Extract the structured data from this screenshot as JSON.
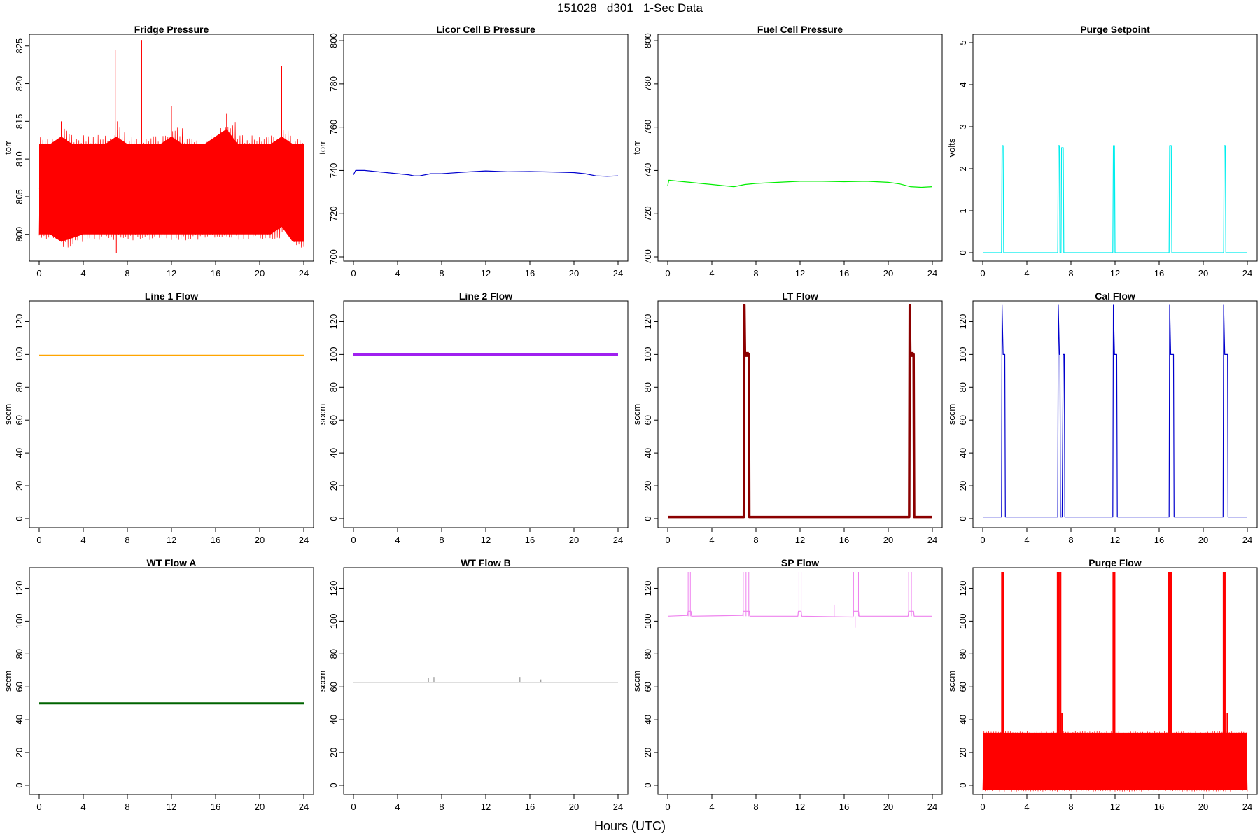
{
  "figure": {
    "title": "151028   d301   1-Sec Data",
    "xlabel": "Hours (UTC)"
  },
  "chart_data": [
    {
      "type": "line",
      "title": "Fridge Pressure",
      "ylabel": "torr",
      "color": "#ff0000",
      "xlim": [
        0,
        24
      ],
      "ylim": [
        797,
        826
      ],
      "xticks": [
        0,
        4,
        8,
        12,
        16,
        20,
        24
      ],
      "yticks": [
        800,
        805,
        810,
        815,
        820,
        825
      ],
      "series": [
        {
          "x": [
            0,
            1,
            2,
            3,
            4,
            5,
            6,
            7,
            8,
            9,
            10,
            11,
            12,
            13,
            14,
            15,
            16,
            17,
            18,
            19,
            20,
            21,
            22,
            23,
            24
          ],
          "y": [
            806,
            806.5,
            807,
            806,
            806,
            806.5,
            806,
            808,
            807,
            807.5,
            807,
            806.5,
            807,
            806.5,
            806,
            806,
            806.5,
            808,
            807,
            806,
            806,
            806,
            807,
            806,
            806
          ]
        }
      ],
      "noise_band": {
        "low": [
          800,
          800,
          799,
          799.5,
          800,
          800,
          800,
          800,
          800,
          800,
          800,
          800,
          800,
          800,
          800,
          800,
          800,
          800,
          800,
          800,
          800,
          800,
          801,
          799,
          799
        ],
        "high": [
          812,
          812,
          813,
          812,
          812,
          812,
          812,
          813,
          812,
          812,
          812,
          812,
          813,
          812,
          812,
          812,
          813,
          814,
          812,
          812,
          812,
          812,
          813,
          812,
          812
        ]
      },
      "spikes": [
        {
          "x": 2,
          "y": 815
        },
        {
          "x": 6.9,
          "y": 824.5
        },
        {
          "x": 7.1,
          "y": 815
        },
        {
          "x": 9.3,
          "y": 825.8
        },
        {
          "x": 12,
          "y": 817
        },
        {
          "x": 17,
          "y": 816
        },
        {
          "x": 22,
          "y": 822.3
        },
        {
          "x": 7,
          "y": 797.5
        }
      ]
    },
    {
      "type": "line",
      "title": "Licor Cell B Pressure",
      "ylabel": "torr",
      "color": "#0000cd",
      "xlim": [
        0,
        24
      ],
      "ylim": [
        700,
        801
      ],
      "xticks": [
        0,
        4,
        8,
        12,
        16,
        20,
        24
      ],
      "yticks": [
        700,
        720,
        740,
        760,
        780,
        800
      ],
      "series": [
        {
          "x": [
            0,
            0.2,
            1,
            2,
            3,
            4,
            5,
            5.5,
            6,
            7,
            8,
            10,
            12,
            14,
            16,
            18,
            20,
            21,
            22,
            23,
            24
          ],
          "y": [
            738,
            740,
            740,
            739.5,
            739,
            738.5,
            738,
            737.5,
            737.5,
            738.5,
            738.5,
            739.2,
            739.8,
            739.4,
            739.5,
            739.3,
            739,
            738.5,
            737.5,
            737.3,
            737.5
          ]
        }
      ]
    },
    {
      "type": "line",
      "title": "Fuel Cell Pressure",
      "ylabel": "torr",
      "color": "#00ee00",
      "xlim": [
        0,
        24
      ],
      "ylim": [
        700,
        801
      ],
      "xticks": [
        0,
        4,
        8,
        12,
        16,
        20,
        24
      ],
      "yticks": [
        700,
        720,
        740,
        760,
        780,
        800
      ],
      "series": [
        {
          "x": [
            0,
            0.1,
            1,
            2,
            3,
            4,
            5,
            6,
            7,
            8,
            10,
            12,
            14,
            16,
            18,
            20,
            21,
            22,
            23,
            24
          ],
          "y": [
            733,
            735.5,
            735,
            734.5,
            734,
            733.5,
            733,
            732.5,
            733.5,
            734,
            734.5,
            735,
            735,
            734.8,
            735,
            734.5,
            733.8,
            732.5,
            732.2,
            732.5
          ]
        }
      ]
    },
    {
      "type": "line",
      "title": "Purge Setpoint",
      "ylabel": "volts",
      "color": "#00eeee",
      "xlim": [
        0,
        24
      ],
      "ylim": [
        -0.1,
        5.1
      ],
      "xticks": [
        0,
        4,
        8,
        12,
        16,
        20,
        24
      ],
      "yticks": [
        0,
        1,
        2,
        3,
        4,
        5
      ],
      "series": [
        {
          "x": [
            0,
            1.7,
            1.75,
            1.85,
            1.9,
            6.8,
            6.85,
            6.95,
            7.0,
            7.1,
            7.15,
            7.3,
            7.35,
            11.8,
            11.85,
            11.95,
            12.0,
            16.9,
            16.95,
            17.1,
            17.15,
            21.85,
            21.9,
            22.0,
            22.05,
            24
          ],
          "y": [
            0,
            0,
            2.55,
            2.55,
            0,
            0,
            2.55,
            2.55,
            0,
            0,
            2.5,
            2.5,
            0,
            0,
            2.55,
            2.55,
            0,
            0,
            2.55,
            2.55,
            0,
            0,
            2.55,
            2.55,
            0,
            0
          ]
        }
      ]
    },
    {
      "type": "line",
      "title": "Line 1 Flow",
      "ylabel": "sccm",
      "color": "#ffa500",
      "xlim": [
        0,
        24
      ],
      "ylim": [
        -3,
        130
      ],
      "xticks": [
        0,
        4,
        8,
        12,
        16,
        20,
        24
      ],
      "yticks": [
        0,
        20,
        40,
        60,
        80,
        100,
        120
      ],
      "series": [
        {
          "x": [
            0,
            24
          ],
          "y": [
            99.5,
            99.5
          ]
        }
      ]
    },
    {
      "type": "line",
      "title": "Line 2 Flow",
      "ylabel": "sccm",
      "color": "#a020f0",
      "xlim": [
        0,
        24
      ],
      "ylim": [
        -3,
        130
      ],
      "xticks": [
        0,
        4,
        8,
        12,
        16,
        20,
        24
      ],
      "yticks": [
        0,
        20,
        40,
        60,
        80,
        100,
        120
      ],
      "series": [
        {
          "x": [
            0,
            24
          ],
          "y": [
            99.8,
            99.8
          ]
        }
      ]
    },
    {
      "type": "line",
      "title": "LT Flow",
      "ylabel": "sccm",
      "color": "#8b0000",
      "xlim": [
        0,
        24
      ],
      "ylim": [
        -3,
        130
      ],
      "xticks": [
        0,
        4,
        8,
        12,
        16,
        20,
        24
      ],
      "yticks": [
        0,
        20,
        40,
        60,
        80,
        100,
        120
      ],
      "series": [
        {
          "x": [
            0,
            6.9,
            6.95,
            7.0,
            7.35,
            7.4,
            21.9,
            21.95,
            22.0,
            22.3,
            22.35,
            24
          ],
          "y": [
            1,
            1,
            130,
            100,
            100,
            1,
            1,
            130,
            100,
            100,
            1,
            1
          ]
        }
      ]
    },
    {
      "type": "line",
      "title": "Cal Flow",
      "ylabel": "sccm",
      "color": "#0000cd",
      "xlim": [
        0,
        24
      ],
      "ylim": [
        -3,
        130
      ],
      "xticks": [
        0,
        4,
        8,
        12,
        16,
        20,
        24
      ],
      "yticks": [
        0,
        20,
        40,
        60,
        80,
        100,
        120
      ],
      "series": [
        {
          "x": [
            0,
            1.7,
            1.75,
            1.85,
            2.0,
            2.05,
            6.8,
            6.85,
            6.95,
            7.0,
            7.05,
            7.2,
            7.3,
            7.4,
            7.45,
            11.8,
            11.85,
            11.95,
            12.15,
            12.2,
            16.9,
            16.95,
            17.05,
            17.3,
            17.35,
            21.8,
            21.85,
            21.95,
            22.2,
            22.25,
            24
          ],
          "y": [
            1,
            1,
            130,
            100,
            100,
            1,
            1,
            130,
            100,
            100,
            1,
            1,
            100,
            100,
            1,
            1,
            130,
            100,
            100,
            1,
            1,
            130,
            100,
            100,
            1,
            1,
            130,
            100,
            100,
            1,
            1
          ]
        }
      ]
    },
    {
      "type": "line",
      "title": "WT Flow A",
      "ylabel": "sccm",
      "color": "#006400",
      "xlim": [
        0,
        24
      ],
      "ylim": [
        -3,
        130
      ],
      "xticks": [
        0,
        4,
        8,
        12,
        16,
        20,
        24
      ],
      "yticks": [
        0,
        20,
        40,
        60,
        80,
        100,
        120
      ],
      "series": [
        {
          "x": [
            0,
            24
          ],
          "y": [
            50,
            50
          ]
        }
      ]
    },
    {
      "type": "line",
      "title": "WT Flow B",
      "ylabel": "sccm",
      "color": "#808080",
      "xlim": [
        0,
        24
      ],
      "ylim": [
        -3,
        130
      ],
      "xticks": [
        0,
        4,
        8,
        12,
        16,
        20,
        24
      ],
      "yticks": [
        0,
        20,
        40,
        60,
        80,
        100,
        120
      ],
      "series": [
        {
          "x": [
            0,
            24
          ],
          "y": [
            62.8,
            62.8
          ]
        }
      ],
      "spikes": [
        {
          "x": 6.8,
          "y": 65.5
        },
        {
          "x": 7.3,
          "y": 66
        },
        {
          "x": 15.1,
          "y": 66
        },
        {
          "x": 17,
          "y": 64.5
        }
      ]
    },
    {
      "type": "line",
      "title": "SP Flow",
      "ylabel": "sccm",
      "color": "#ee82ee",
      "xlim": [
        0,
        24
      ],
      "ylim": [
        -3,
        130
      ],
      "xticks": [
        0,
        4,
        8,
        12,
        16,
        20,
        24
      ],
      "yticks": [
        0,
        20,
        40,
        60,
        80,
        100,
        120
      ],
      "series": [
        {
          "x": [
            0,
            1.8,
            1.85,
            2.1,
            2.15,
            6.8,
            6.85,
            7.4,
            7.45,
            11.8,
            11.85,
            12.1,
            12.15,
            16.8,
            16.85,
            17.3,
            17.35,
            21.8,
            21.85,
            22.3,
            22.35,
            24
          ],
          "y": [
            103,
            103.5,
            106,
            106,
            103,
            103.5,
            106,
            106,
            103,
            103,
            106,
            106,
            103,
            102.5,
            106,
            106,
            103,
            103,
            106,
            106,
            103,
            103
          ]
        }
      ],
      "spikes": [
        {
          "x": 1.85,
          "y": 130
        },
        {
          "x": 2.05,
          "y": 130
        },
        {
          "x": 6.85,
          "y": 130
        },
        {
          "x": 7.1,
          "y": 130
        },
        {
          "x": 7.35,
          "y": 130
        },
        {
          "x": 11.9,
          "y": 130
        },
        {
          "x": 12.1,
          "y": 130
        },
        {
          "x": 15.1,
          "y": 110
        },
        {
          "x": 16.85,
          "y": 130
        },
        {
          "x": 17.3,
          "y": 130
        },
        {
          "x": 21.85,
          "y": 130
        },
        {
          "x": 22.1,
          "y": 130
        },
        {
          "x": 17,
          "y": 96
        }
      ]
    },
    {
      "type": "line",
      "title": "Purge Flow",
      "ylabel": "sccm",
      "color": "#ff0000",
      "xlim": [
        0,
        24
      ],
      "ylim": [
        -3,
        130
      ],
      "xticks": [
        0,
        4,
        8,
        12,
        16,
        20,
        24
      ],
      "yticks": [
        0,
        20,
        40,
        60,
        80,
        100,
        120
      ],
      "series": [
        {
          "x": [
            0,
            24
          ],
          "y": [
            16,
            16
          ]
        }
      ],
      "noise_band": {
        "low": [
          -3,
          -3
        ],
        "high": [
          32,
          32
        ]
      },
      "spikes": [
        {
          "x": 1.75,
          "y": 130
        },
        {
          "x": 1.85,
          "y": 130
        },
        {
          "x": 6.8,
          "y": 130
        },
        {
          "x": 6.9,
          "y": 130
        },
        {
          "x": 7.05,
          "y": 130
        },
        {
          "x": 7.2,
          "y": 44
        },
        {
          "x": 11.85,
          "y": 130
        },
        {
          "x": 11.95,
          "y": 130
        },
        {
          "x": 16.9,
          "y": 130
        },
        {
          "x": 17.0,
          "y": 130
        },
        {
          "x": 17.1,
          "y": 130
        },
        {
          "x": 21.85,
          "y": 130
        },
        {
          "x": 21.95,
          "y": 130
        },
        {
          "x": 22.2,
          "y": 44
        }
      ]
    }
  ]
}
